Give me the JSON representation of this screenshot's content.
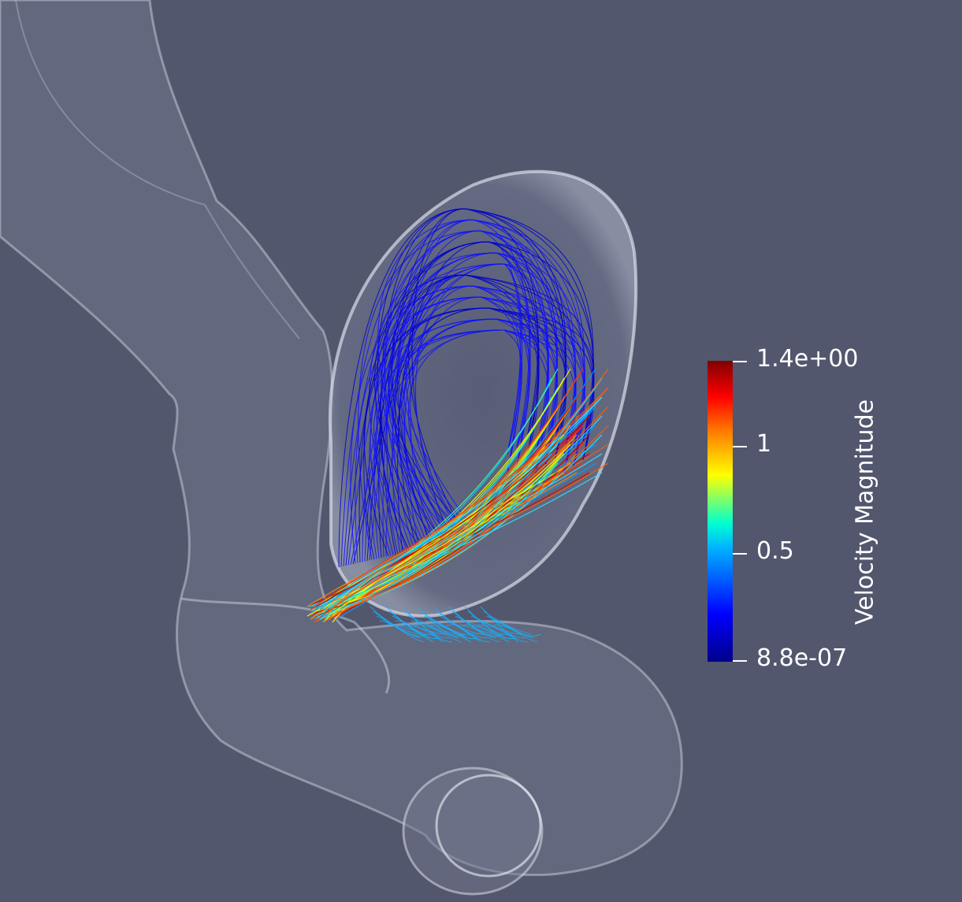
{
  "legend": {
    "title": "Velocity Magnitude",
    "ticks": [
      {
        "label": "1.4e+00"
      },
      {
        "label": "1"
      },
      {
        "label": "0.5"
      },
      {
        "label": "8.8e-07"
      }
    ],
    "colors": [
      "#00008b",
      "#0000ff",
      "#00b4ff",
      "#00ffd0",
      "#ffff00",
      "#ff8000",
      "#ff0000",
      "#800000"
    ]
  },
  "scene": {
    "background": "#52576e",
    "vessel_color": "#e8ecf4"
  }
}
